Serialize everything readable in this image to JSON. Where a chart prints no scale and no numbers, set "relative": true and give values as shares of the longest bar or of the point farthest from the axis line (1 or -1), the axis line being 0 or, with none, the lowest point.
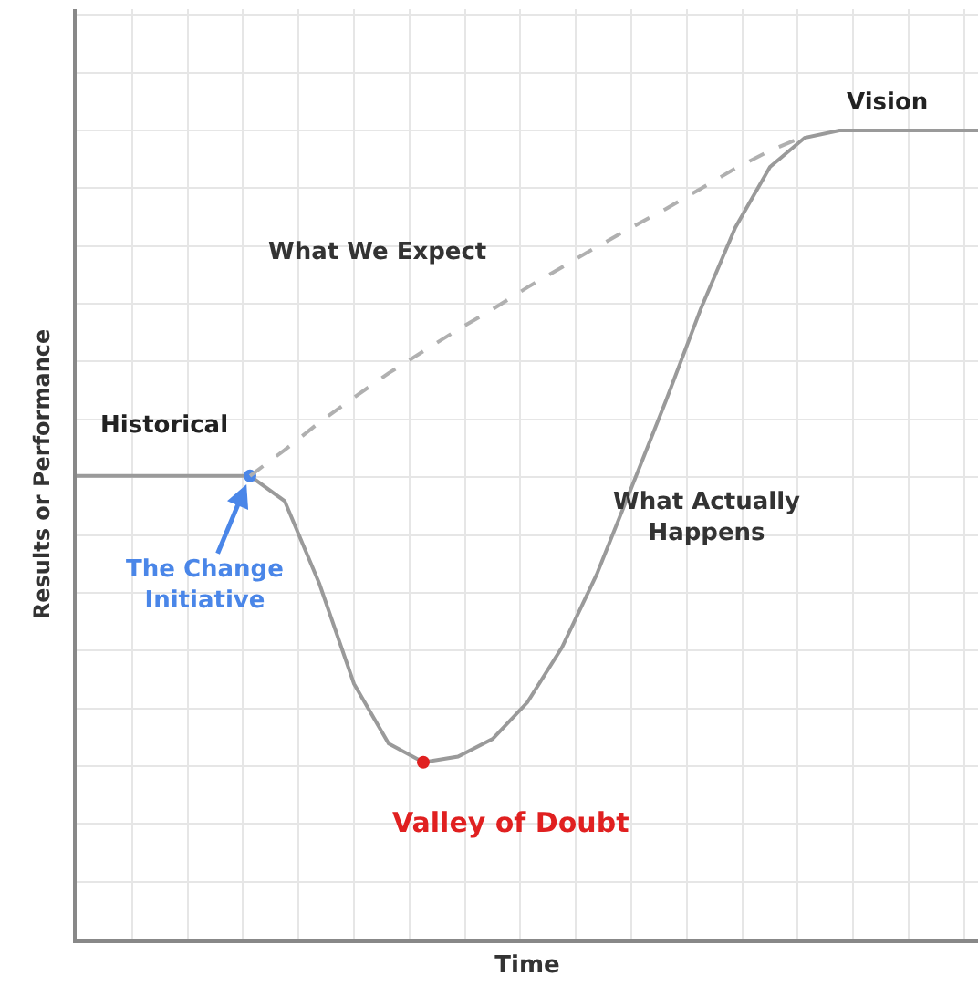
{
  "chart_data": {
    "type": "line",
    "relative": true,
    "xlabel": "Time",
    "ylabel": "Results or Performance",
    "grid": true,
    "legend": false,
    "categories": [
      null,
      null,
      null,
      null,
      null,
      null,
      null,
      null,
      null,
      null,
      null,
      null,
      null,
      null,
      null,
      null,
      null,
      null,
      null,
      null,
      null,
      null,
      null,
      null,
      null,
      null,
      null
    ],
    "series": [
      {
        "name": "What Actually Happens",
        "color": "#9a9a9a",
        "line_style": "solid",
        "colors": [
          null,
          null,
          null,
          null,
          null,
          "#4a86e8",
          null,
          null,
          null,
          null,
          "#e02020",
          null,
          null,
          null,
          null,
          null,
          null,
          null,
          null,
          null,
          null,
          null,
          null,
          null,
          null,
          null,
          null
        ],
        "values": [
          0.573,
          0.573,
          0.573,
          0.573,
          0.573,
          0.573,
          0.542,
          0.44,
          0.316,
          0.242,
          0.219,
          0.226,
          0.248,
          0.293,
          0.361,
          0.451,
          0.558,
          0.666,
          0.779,
          0.88,
          0.955,
          0.991,
          1,
          1,
          1,
          1,
          1
        ]
      },
      {
        "name": "What We Expect",
        "color": "#b0b0b0",
        "line_style": "dashed",
        "values": [
          null,
          null,
          null,
          null,
          null,
          0.573,
          0.605,
          0.639,
          0.67,
          0.7,
          0.727,
          0.754,
          0.779,
          0.806,
          0.831,
          0.856,
          0.88,
          0.903,
          0.928,
          0.953,
          0.975,
          0.993,
          null,
          null,
          null,
          null,
          null
        ]
      }
    ],
    "annotations": [
      "Historical",
      "Vision",
      "The Change Initiative",
      "Valley of Doubt"
    ]
  }
}
